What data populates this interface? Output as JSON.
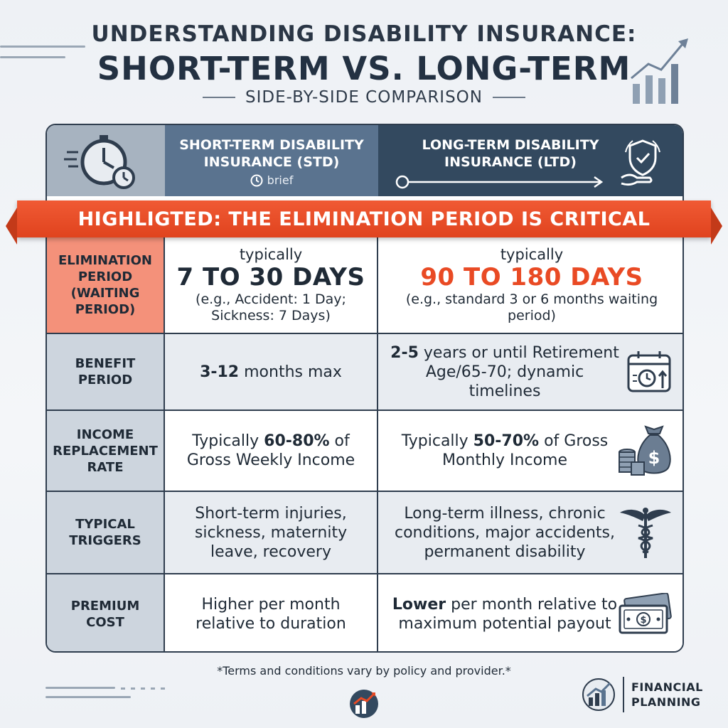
{
  "header": {
    "title_line1": "UNDERSTANDING DISABILITY INSURANCE:",
    "title_line2": "SHORT-TERM VS. LONG-TERM",
    "subtitle": "SIDE-BY-SIDE COMPARISON"
  },
  "columns": {
    "std": {
      "title": "SHORT-TERM DISABILITY INSURANCE (STD)",
      "tag": "brief"
    },
    "ltd": {
      "title": "LONG-TERM DISABILITY INSURANCE (LTD)"
    }
  },
  "banner": "HIGHLIGTED: THE ELIMINATION PERIOD IS CRITICAL",
  "rows": {
    "elimination": {
      "label": "ELIMINATION PERIOD (WAITING PERIOD)",
      "std_pre": "typically",
      "std_main": "7 TO 30 DAYS",
      "std_note": "(e.g., Accident: 1 Day; Sickness: 7 Days)",
      "ltd_pre": "typically",
      "ltd_main": "90 TO 180 DAYS",
      "ltd_note": "(e.g., standard 3 or 6 months waiting period)"
    },
    "benefit": {
      "label": "BENEFIT PERIOD",
      "std_bold": "3-12",
      "std_rest": " months max",
      "ltd_bold": "2-5",
      "ltd_rest": " years or until Retirement Age/65-70; dynamic timelines",
      "icon": "calendar-clock-icon"
    },
    "income": {
      "label": "INCOME REPLACEMENT RATE",
      "std_pre": "Typically ",
      "std_bold": "60-80%",
      "std_rest": " of Gross Weekly Income",
      "ltd_pre": "Typically ",
      "ltd_bold": "50-70%",
      "ltd_rest": " of Gross Monthly Income",
      "icon": "money-bag-icon"
    },
    "triggers": {
      "label": "TYPICAL TRIGGERS",
      "std": "Short-term injuries, sickness, maternity leave, recovery",
      "ltd": "Long-term illness, chronic conditions, major accidents, permanent disability",
      "icon": "caduceus-icon"
    },
    "premium": {
      "label": "PREMIUM COST",
      "std": "Higher per month relative to duration",
      "ltd_bold": "Lower",
      "ltd_rest": " per month relative to maximum potential payout",
      "icon": "cash-icon"
    }
  },
  "footnote": "*Terms and conditions vary by policy and provider.*",
  "brand": {
    "line1": "FINANCIAL",
    "line2": "PLANNING"
  },
  "colors": {
    "accent": "#e94a24",
    "navy": "#33495f",
    "slate": "#5a738f"
  }
}
